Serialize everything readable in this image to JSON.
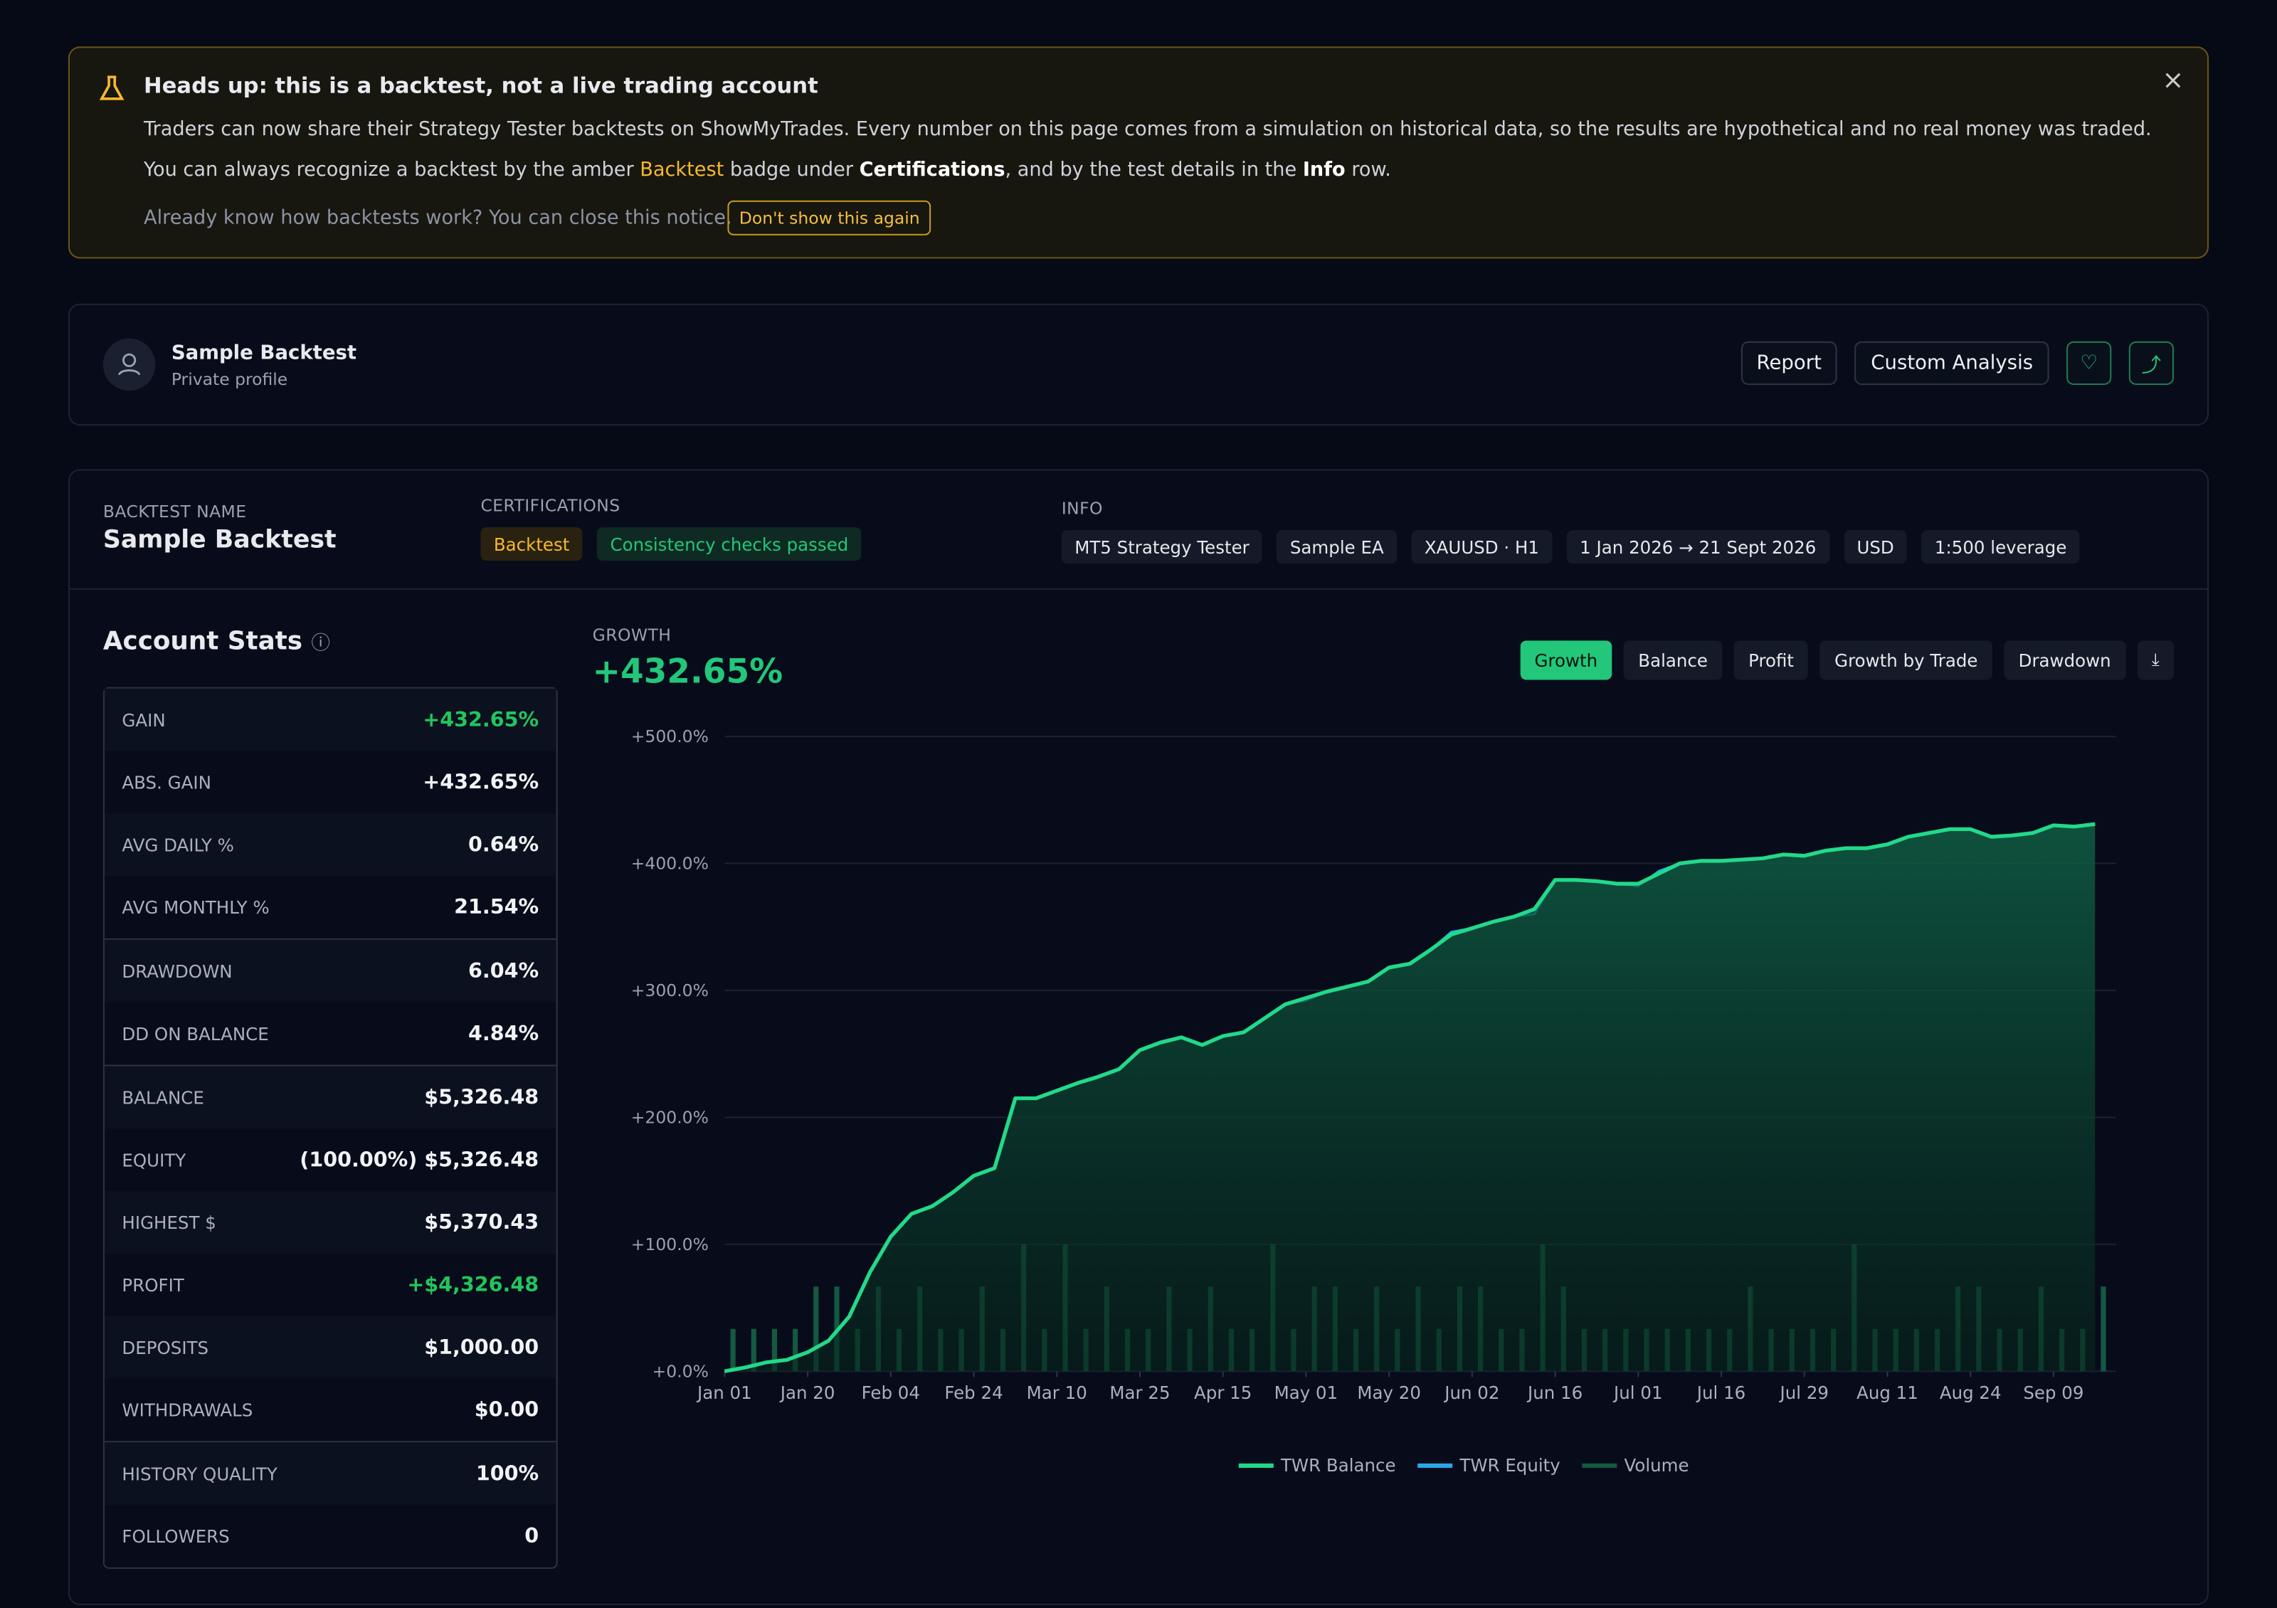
{
  "notice": {
    "title": "Heads up: this is a backtest, not a live trading account",
    "line1": "Traders can now share their Strategy Tester backtests on ShowMyTrades. Every number on this page comes from a simulation on historical data, so the results are hypothetical and no real money was traded.",
    "line2": [
      "You can always recognize a backtest by the amber ",
      "Backtest",
      " badge under ",
      "Certifications",
      ", and by the test details in the ",
      "Info",
      " row."
    ],
    "line3": "Already know how backtests work? You can close this notice.",
    "button": "Don't show this again"
  },
  "profile": {
    "name": "Sample Backtest",
    "subtitle": "Private profile",
    "actions": [
      "Report",
      "Custom Analysis"
    ]
  },
  "backtest": {
    "name_label": "BACKTEST NAME",
    "name": "Sample Backtest",
    "cert_label": "CERTIFICATIONS",
    "certs": [
      "Backtest",
      "Consistency checks passed"
    ],
    "info_label": "INFO",
    "info": [
      "MT5 Strategy Tester",
      "Sample EA",
      "XAUUSD · H1",
      "1 Jan 2026 → 21 Sept 2026",
      "USD",
      "1:500 leverage"
    ]
  },
  "stats": {
    "title": "Account Stats",
    "groups": [
      [
        {
          "label": "GAIN",
          "value": "+432.65%",
          "color": "#22c55e"
        },
        {
          "label": "ABS. GAIN",
          "value": "+432.65%"
        },
        {
          "label": "AVG DAILY %",
          "value": "0.64%"
        },
        {
          "label": "AVG MONTHLY %",
          "value": "21.54%"
        }
      ],
      [
        {
          "label": "DRAWDOWN",
          "value": "6.04%"
        },
        {
          "label": "DD ON BALANCE",
          "value": "4.84%"
        }
      ],
      [
        {
          "label": "BALANCE",
          "value": "$5,326.48"
        },
        {
          "label": "EQUITY",
          "value": "(100.00%) $5,326.48"
        },
        {
          "label": "HIGHEST $",
          "value": "$5,370.43"
        },
        {
          "label": "PROFIT",
          "value": "+$4,326.48",
          "color": "#22c55e"
        },
        {
          "label": "DEPOSITS",
          "value": "$1,000.00"
        },
        {
          "label": "WITHDRAWALS",
          "value": "$0.00"
        }
      ],
      [
        {
          "label": "HISTORY QUALITY",
          "value": "100%"
        },
        {
          "label": "FOLLOWERS",
          "value": "0"
        }
      ]
    ]
  },
  "chart_data": {
    "type": "line",
    "label": "GROWTH",
    "headline": "+432.65%",
    "tabs": [
      "Growth",
      "Balance",
      "Profit",
      "Growth by Trade",
      "Drawdown"
    ],
    "active_tab": 0,
    "x": [
      0,
      1,
      2,
      3,
      4,
      5,
      6,
      7,
      8,
      9,
      10,
      11,
      12,
      13,
      14,
      15,
      16,
      17,
      18,
      19,
      20,
      21,
      22,
      23,
      24,
      25,
      26,
      27,
      28,
      29,
      30,
      31,
      32,
      33,
      34,
      35,
      36,
      37,
      38,
      39,
      40,
      41,
      42,
      43,
      44,
      45,
      46,
      47,
      48,
      49,
      50,
      51,
      52,
      53,
      54,
      55,
      56,
      57,
      58,
      59,
      60,
      61,
      62,
      63,
      64,
      65,
      66
    ],
    "series": [
      {
        "name": "TWR Balance",
        "color": "#22d98a",
        "values": [
          0,
          3,
          7,
          9,
          15,
          24,
          43,
          78,
          106,
          124,
          130,
          141,
          154,
          160,
          215,
          215,
          221,
          227,
          232,
          238,
          253,
          259,
          263,
          257,
          264,
          267,
          278,
          289,
          294,
          299,
          303,
          307,
          318,
          321,
          332,
          344,
          349,
          354,
          358,
          364,
          387,
          387,
          386,
          384,
          384,
          392,
          400,
          402,
          402,
          403,
          404,
          407,
          406,
          410,
          412,
          412,
          415,
          421,
          424,
          427,
          427,
          421,
          422,
          424,
          430,
          429,
          431
        ]
      },
      {
        "name": "TWR Equity",
        "color": "#2aa7e8",
        "values": [
          0,
          3,
          7,
          9,
          15,
          24,
          43,
          78,
          106,
          124,
          130,
          141,
          154,
          160,
          215,
          215,
          221,
          227,
          232,
          238,
          253,
          259,
          263,
          257,
          264,
          267,
          278,
          289,
          292,
          299,
          303,
          307,
          318,
          321,
          332,
          346,
          349,
          354,
          358,
          360,
          387,
          387,
          386,
          384,
          382,
          394,
          400,
          402,
          402,
          403,
          404,
          407,
          406,
          410,
          412,
          412,
          415,
          421,
          424,
          427,
          427,
          421,
          422,
          424,
          430,
          429,
          431
        ]
      },
      {
        "name": "Volume",
        "color": "#135a41",
        "type": "bar",
        "axis": "y2",
        "values": [
          1,
          1,
          1,
          1,
          2,
          2,
          1,
          2,
          1,
          2,
          1,
          1,
          2,
          1,
          3,
          1,
          3,
          1,
          2,
          1,
          1,
          2,
          1,
          2,
          1,
          1,
          3,
          1,
          2,
          2,
          1,
          2,
          1,
          2,
          1,
          2,
          2,
          1,
          1,
          3,
          2,
          1,
          1,
          1,
          1,
          1,
          1,
          1,
          1,
          2,
          1,
          1,
          1,
          1,
          3,
          1,
          1,
          1,
          1,
          2,
          2,
          1,
          1,
          2,
          1,
          1,
          2
        ]
      }
    ],
    "xlim": [
      0,
      67
    ],
    "ylim": [
      0,
      500
    ],
    "y2lim": [
      0,
      15
    ],
    "yticks": [
      {
        "value": 0,
        "label": "+0.0%"
      },
      {
        "value": 100,
        "label": "+100.0%"
      },
      {
        "value": 200,
        "label": "+200.0%"
      },
      {
        "value": 300,
        "label": "+300.0%"
      },
      {
        "value": 400,
        "label": "+400.0%"
      },
      {
        "value": 500,
        "label": "+500.0%"
      }
    ],
    "xticks": [
      {
        "value": 0,
        "label": "Jan 01"
      },
      {
        "value": 4,
        "label": "Jan 20"
      },
      {
        "value": 8,
        "label": "Feb 04"
      },
      {
        "value": 12,
        "label": "Feb 24"
      },
      {
        "value": 16,
        "label": "Mar 10"
      },
      {
        "value": 20,
        "label": "Mar 25"
      },
      {
        "value": 24,
        "label": "Apr 15"
      },
      {
        "value": 28,
        "label": "May 01"
      },
      {
        "value": 32,
        "label": "May 20"
      },
      {
        "value": 36,
        "label": "Jun 02"
      },
      {
        "value": 40,
        "label": "Jun 16"
      },
      {
        "value": 44,
        "label": "Jul 01"
      },
      {
        "value": 48,
        "label": "Jul 16"
      },
      {
        "value": 52,
        "label": "Jul 29"
      },
      {
        "value": 56,
        "label": "Aug 11"
      },
      {
        "value": 60,
        "label": "Aug 24"
      },
      {
        "value": 64,
        "label": "Sep 09"
      }
    ],
    "grid": true,
    "legend": "bottom"
  }
}
